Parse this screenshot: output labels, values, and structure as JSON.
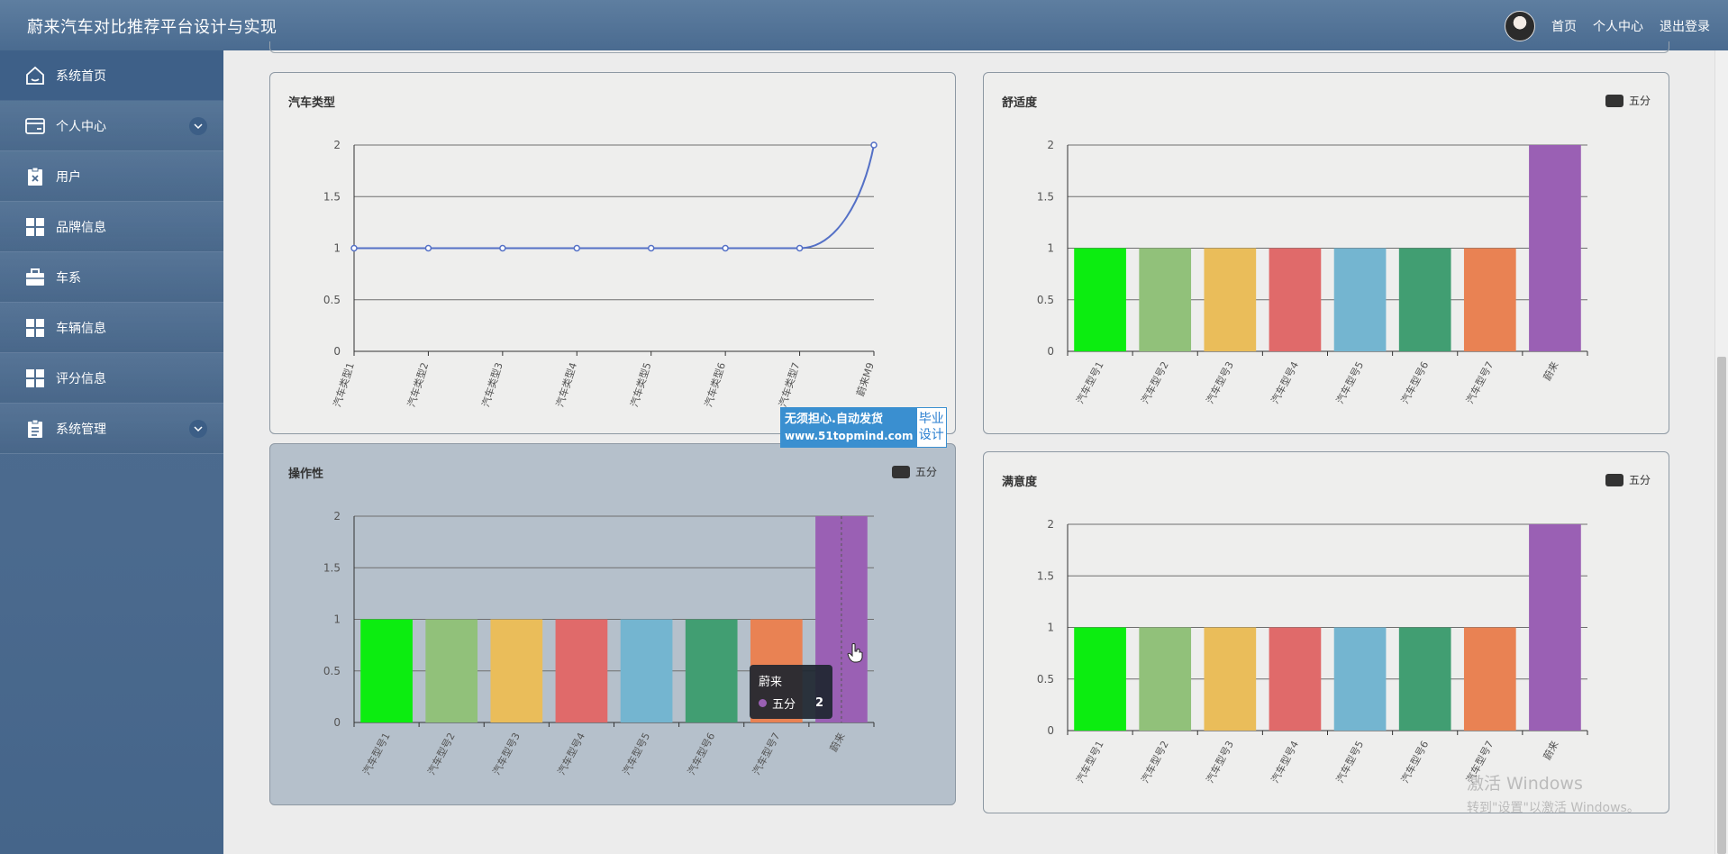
{
  "header": {
    "title": "蔚来汽车对比推荐平台设计与实现",
    "links": {
      "home": "首页",
      "profile": "个人中心",
      "logout": "退出登录"
    }
  },
  "sidebar": {
    "items": [
      {
        "label": "系统首页",
        "icon": "home-icon",
        "expandable": false
      },
      {
        "label": "个人中心",
        "icon": "wallet-icon",
        "expandable": true
      },
      {
        "label": "用户",
        "icon": "clipboard-x-icon",
        "expandable": false
      },
      {
        "label": "品牌信息",
        "icon": "grid-icon",
        "expandable": false
      },
      {
        "label": "车系",
        "icon": "briefcase-icon",
        "expandable": false
      },
      {
        "label": "车辆信息",
        "icon": "grid-icon",
        "expandable": false
      },
      {
        "label": "评分信息",
        "icon": "grid-icon",
        "expandable": false
      },
      {
        "label": "系统管理",
        "icon": "clipboard-list-icon",
        "expandable": true
      }
    ]
  },
  "colors": {
    "bars": [
      "#0ced10",
      "#91c17a",
      "#eabd5a",
      "#e06a6a",
      "#74b5d0",
      "#419e72",
      "#e98253",
      "#9a60b4"
    ],
    "line": "#5470c6",
    "legend": "#333333"
  },
  "panels": {
    "car_type": {
      "title": "汽车类型"
    },
    "comfort": {
      "title": "舒适度",
      "legend": "五分"
    },
    "handling": {
      "title": "操作性",
      "legend": "五分"
    },
    "satisfaction": {
      "title": "满意度",
      "legend": "五分"
    }
  },
  "chart_data": [
    {
      "id": "car_type",
      "type": "line",
      "title": "汽车类型",
      "categories": [
        "汽车类型1",
        "汽车类型2",
        "汽车类型3",
        "汽车类型4",
        "汽车类型5",
        "汽车类型6",
        "汽车类型7",
        "蔚来M9"
      ],
      "values": [
        1,
        1,
        1,
        1,
        1,
        1,
        1,
        2
      ],
      "ylim": [
        0,
        2
      ],
      "yticks": [
        "0",
        "0.5",
        "1",
        "1.5",
        "2"
      ],
      "smooth": true,
      "grid": true
    },
    {
      "id": "comfort",
      "type": "bar",
      "title": "舒适度",
      "categories": [
        "汽车型号1",
        "汽车型号2",
        "汽车型号3",
        "汽车型号4",
        "汽车型号5",
        "汽车型号6",
        "汽车型号7",
        "蔚来"
      ],
      "series": [
        {
          "name": "五分",
          "values": [
            1,
            1,
            1,
            1,
            1,
            1,
            1,
            2
          ]
        }
      ],
      "ylim": [
        0,
        2
      ],
      "yticks": [
        "0",
        "0.5",
        "1",
        "1.5",
        "2"
      ],
      "legend": "top-right",
      "grid": true
    },
    {
      "id": "handling",
      "type": "bar",
      "title": "操作性",
      "categories": [
        "汽车型号1",
        "汽车型号2",
        "汽车型号3",
        "汽车型号4",
        "汽车型号5",
        "汽车型号6",
        "汽车型号7",
        "蔚来"
      ],
      "series": [
        {
          "name": "五分",
          "values": [
            1,
            1,
            1,
            1,
            1,
            1,
            1,
            2
          ]
        }
      ],
      "ylim": [
        0,
        2
      ],
      "yticks": [
        "0",
        "0.5",
        "1",
        "1.5",
        "2"
      ],
      "legend": "top-right",
      "grid": true,
      "tooltip": {
        "category": "蔚来",
        "series": "五分",
        "value": "2"
      }
    },
    {
      "id": "satisfaction",
      "type": "bar",
      "title": "满意度",
      "categories": [
        "汽车型号1",
        "汽车型号2",
        "汽车型号3",
        "汽车型号4",
        "汽车型号5",
        "汽车型号6",
        "汽车型号7",
        "蔚来"
      ],
      "series": [
        {
          "name": "五分",
          "values": [
            1,
            1,
            1,
            1,
            1,
            1,
            1,
            2
          ]
        }
      ],
      "ylim": [
        0,
        2
      ],
      "yticks": [
        "0",
        "0.5",
        "1",
        "1.5",
        "2"
      ],
      "legend": "top-right",
      "grid": true
    }
  ],
  "ad": {
    "line1": "无须担心.自动发货",
    "url": "www.51topmind.com",
    "right1": "毕业",
    "right2": "设计"
  },
  "watermark": {
    "line1": "激活 Windows",
    "line2": "转到\"设置\"以激活 Windows。"
  }
}
